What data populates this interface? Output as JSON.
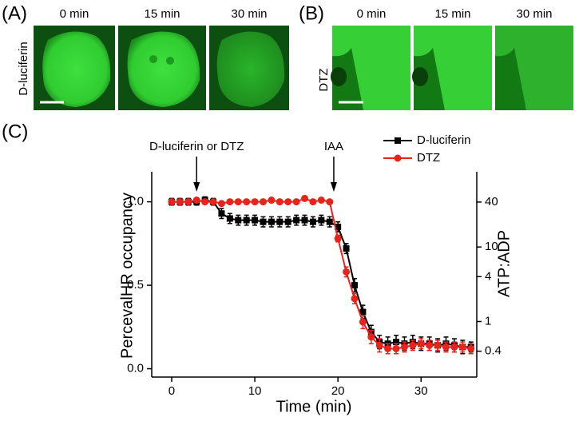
{
  "panels": [
    {
      "label": "(A)",
      "condition": "D-luciferin",
      "times": [
        "0 min",
        "15 min",
        "30 min"
      ]
    },
    {
      "label": "(B)",
      "condition": "DTZ",
      "times": [
        "0 min",
        "15 min",
        "30 min"
      ]
    }
  ],
  "chart_data": {
    "type": "line",
    "panel_label": "(C)",
    "x_label": "Time (min)",
    "y_label": "PercevalHR occupancy",
    "y2_label": "ATP:ADP",
    "annotations": [
      {
        "text": "D-luciferin or DTZ",
        "x": 3
      },
      {
        "text": "IAA",
        "x": 19.5
      }
    ],
    "x": [
      0,
      1,
      2,
      3,
      4,
      5,
      6,
      7,
      8,
      9,
      10,
      11,
      12,
      13,
      14,
      15,
      16,
      17,
      18,
      19,
      20,
      21,
      22,
      23,
      24,
      25,
      26,
      27,
      28,
      29,
      30,
      31,
      32,
      33,
      34,
      35,
      36
    ],
    "series": [
      {
        "name": "D-luciferin",
        "color": "#000000",
        "values": [
          1.0,
          1.0,
          1.0,
          1.0,
          1.01,
          1.0,
          0.93,
          0.9,
          0.89,
          0.89,
          0.89,
          0.88,
          0.88,
          0.88,
          0.88,
          0.89,
          0.89,
          0.88,
          0.89,
          0.88,
          0.85,
          0.72,
          0.5,
          0.34,
          0.22,
          0.16,
          0.15,
          0.16,
          0.15,
          0.16,
          0.15,
          0.15,
          0.14,
          0.15,
          0.14,
          0.13,
          0.13
        ],
        "errors": [
          0.02,
          0.02,
          0.02,
          0.02,
          0.02,
          0.02,
          0.03,
          0.03,
          0.03,
          0.03,
          0.03,
          0.03,
          0.03,
          0.03,
          0.03,
          0.03,
          0.03,
          0.03,
          0.03,
          0.03,
          0.03,
          0.03,
          0.04,
          0.04,
          0.04,
          0.04,
          0.04,
          0.04,
          0.04,
          0.04,
          0.04,
          0.04,
          0.04,
          0.04,
          0.04,
          0.04,
          0.03
        ]
      },
      {
        "name": "DTZ",
        "color": "#e8231b",
        "values": [
          1.0,
          1.0,
          1.0,
          1.01,
          1.0,
          1.0,
          0.99,
          1.0,
          1.0,
          1.0,
          1.0,
          1.0,
          1.01,
          1.0,
          1.0,
          1.0,
          1.02,
          1.0,
          1.01,
          1.0,
          0.78,
          0.58,
          0.42,
          0.28,
          0.19,
          0.14,
          0.12,
          0.12,
          0.13,
          0.14,
          0.15,
          0.14,
          0.14,
          0.13,
          0.13,
          0.13,
          0.12
        ],
        "errors": [
          0.01,
          0.01,
          0.01,
          0.01,
          0.01,
          0.01,
          0.01,
          0.01,
          0.01,
          0.01,
          0.01,
          0.01,
          0.01,
          0.01,
          0.01,
          0.01,
          0.01,
          0.01,
          0.01,
          0.01,
          0.02,
          0.03,
          0.03,
          0.04,
          0.04,
          0.04,
          0.03,
          0.03,
          0.03,
          0.03,
          0.03,
          0.03,
          0.03,
          0.03,
          0.03,
          0.03,
          0.03
        ]
      }
    ],
    "xlim": [
      -2.4,
      36.7
    ],
    "xticks": [
      0,
      10,
      20,
      30
    ],
    "ylim": [
      -0.05,
      1.18
    ],
    "yticks": [
      {
        "value": 0,
        "label": "0.0"
      },
      0.5,
      {
        "value": 1,
        "label": "1.0"
      }
    ],
    "y2scale": "log",
    "y2lim": [
      0.18,
      102
    ],
    "y2ticks": [
      0.4,
      1,
      4,
      10,
      40
    ],
    "legend": "upper right"
  }
}
